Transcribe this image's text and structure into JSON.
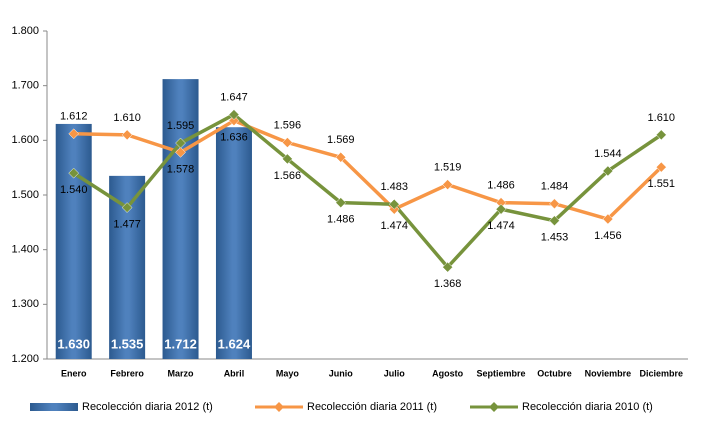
{
  "chart_data": {
    "type": "bar-line",
    "categories": [
      "Enero",
      "Febrero",
      "Marzo",
      "Abril",
      "Mayo",
      "Junio",
      "Julio",
      "Agosto",
      "Septiembre",
      "Octubre",
      "Noviembre",
      "Diciembre"
    ],
    "series": [
      {
        "name": "Recolección diaria  2012 (t)",
        "type": "bar",
        "color": "#4f81bd",
        "values": [
          1630,
          1535,
          1712,
          1624,
          null,
          null,
          null,
          null,
          null,
          null,
          null,
          null
        ],
        "value_labels": [
          "1.630",
          "1.535",
          "1.712",
          "1.624",
          null,
          null,
          null,
          null,
          null,
          null,
          null,
          null
        ]
      },
      {
        "name": "Recolección diaria  2011 (t)",
        "type": "line",
        "color": "#f79646",
        "values": [
          1612,
          1610,
          1578,
          1636,
          1596,
          1569,
          1474,
          1519,
          1486,
          1484,
          1456,
          1551
        ],
        "value_labels": [
          "1.612",
          "1.610",
          "1.578",
          "1.636",
          "1.596",
          "1.569",
          "1.474",
          "1.519",
          "1.486",
          "1.484",
          "1.456",
          "1.551"
        ]
      },
      {
        "name": "Recolección diaria 2010 (t)",
        "type": "line",
        "color": "#77933c",
        "values": [
          1540,
          1477,
          1595,
          1647,
          1566,
          1486,
          1483,
          1368,
          1474,
          1453,
          1544,
          1610
        ],
        "value_labels": [
          "1.540",
          "1.477",
          "1.595",
          "1.647",
          "1.566",
          "1.486",
          "1.483",
          "1.368",
          "1.474",
          "1.453",
          "1.544",
          "1.610"
        ]
      }
    ],
    "ylim": [
      1200,
      1800
    ],
    "yticks": [
      {
        "value": 1200,
        "label": "1.200"
      },
      {
        "value": 1300,
        "label": "1.300"
      },
      {
        "value": 1400,
        "label": "1.400"
      },
      {
        "value": 1500,
        "label": "1.500"
      },
      {
        "value": 1600,
        "label": "1.600"
      },
      {
        "value": 1700,
        "label": "1.700"
      },
      {
        "value": 1800,
        "label": "1.800"
      }
    ],
    "grid": false,
    "legend": "bottom"
  }
}
